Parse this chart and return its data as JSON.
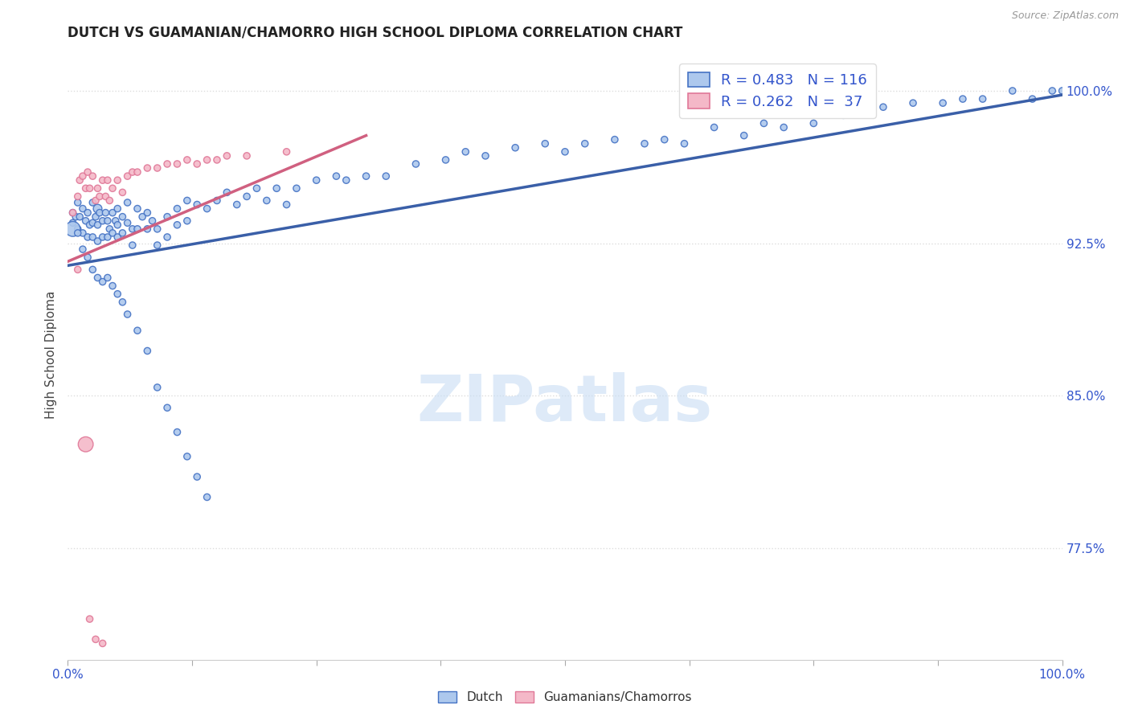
{
  "title": "DUTCH VS GUAMANIAN/CHAMORRO HIGH SCHOOL DIPLOMA CORRELATION CHART",
  "source": "Source: ZipAtlas.com",
  "ylabel": "High School Diploma",
  "watermark": "ZIPatlas",
  "xmin": 0.0,
  "xmax": 1.0,
  "ymin": 0.72,
  "ymax": 1.02,
  "yticks": [
    0.775,
    0.85,
    0.925,
    1.0
  ],
  "ytick_labels": [
    "77.5%",
    "85.0%",
    "92.5%",
    "100.0%"
  ],
  "xticks": [
    0.0,
    0.125,
    0.25,
    0.375,
    0.5,
    0.625,
    0.75,
    0.875,
    1.0
  ],
  "dutch_color": "#adc8ed",
  "dutch_edge_color": "#4472c4",
  "guam_color": "#f4b8c8",
  "guam_edge_color": "#e07898",
  "dutch_line_color": "#3a5fa8",
  "guam_line_color": "#d06080",
  "right_label_color": "#3355cc",
  "title_color": "#222222",
  "ylabel_color": "#444444",
  "background_color": "#ffffff",
  "grid_color": "#dddddd",
  "watermark_color": "#c8ddf4",
  "dutch_scatter_x": [
    0.005,
    0.005,
    0.008,
    0.01,
    0.01,
    0.012,
    0.015,
    0.015,
    0.018,
    0.02,
    0.02,
    0.022,
    0.025,
    0.025,
    0.025,
    0.028,
    0.03,
    0.03,
    0.03,
    0.032,
    0.035,
    0.035,
    0.038,
    0.04,
    0.04,
    0.042,
    0.045,
    0.045,
    0.048,
    0.05,
    0.05,
    0.05,
    0.055,
    0.055,
    0.06,
    0.06,
    0.065,
    0.065,
    0.07,
    0.07,
    0.075,
    0.08,
    0.08,
    0.085,
    0.09,
    0.09,
    0.1,
    0.1,
    0.11,
    0.11,
    0.12,
    0.12,
    0.13,
    0.14,
    0.15,
    0.16,
    0.17,
    0.18,
    0.19,
    0.2,
    0.21,
    0.22,
    0.23,
    0.25,
    0.27,
    0.28,
    0.3,
    0.32,
    0.35,
    0.38,
    0.4,
    0.42,
    0.45,
    0.48,
    0.5,
    0.52,
    0.55,
    0.58,
    0.6,
    0.62,
    0.65,
    0.68,
    0.7,
    0.72,
    0.75,
    0.78,
    0.8,
    0.82,
    0.85,
    0.88,
    0.9,
    0.92,
    0.95,
    0.97,
    0.99,
    1.0,
    0.005,
    0.01,
    0.015,
    0.02,
    0.025,
    0.03,
    0.035,
    0.04,
    0.045,
    0.05,
    0.055,
    0.06,
    0.07,
    0.08,
    0.09,
    0.1,
    0.11,
    0.12,
    0.13,
    0.14
  ],
  "dutch_scatter_y": [
    0.94,
    0.935,
    0.938,
    0.945,
    0.932,
    0.938,
    0.942,
    0.93,
    0.936,
    0.94,
    0.928,
    0.934,
    0.945,
    0.935,
    0.928,
    0.938,
    0.942,
    0.934,
    0.926,
    0.94,
    0.936,
    0.928,
    0.94,
    0.936,
    0.928,
    0.932,
    0.94,
    0.93,
    0.936,
    0.942,
    0.934,
    0.928,
    0.938,
    0.93,
    0.945,
    0.935,
    0.932,
    0.924,
    0.942,
    0.932,
    0.938,
    0.94,
    0.932,
    0.936,
    0.932,
    0.924,
    0.938,
    0.928,
    0.942,
    0.934,
    0.946,
    0.936,
    0.944,
    0.942,
    0.946,
    0.95,
    0.944,
    0.948,
    0.952,
    0.946,
    0.952,
    0.944,
    0.952,
    0.956,
    0.958,
    0.956,
    0.958,
    0.958,
    0.964,
    0.966,
    0.97,
    0.968,
    0.972,
    0.974,
    0.97,
    0.974,
    0.976,
    0.974,
    0.976,
    0.974,
    0.982,
    0.978,
    0.984,
    0.982,
    0.984,
    0.988,
    0.99,
    0.992,
    0.994,
    0.994,
    0.996,
    0.996,
    1.0,
    0.996,
    1.0,
    1.0,
    0.932,
    0.93,
    0.922,
    0.918,
    0.912,
    0.908,
    0.906,
    0.908,
    0.904,
    0.9,
    0.896,
    0.89,
    0.882,
    0.872,
    0.854,
    0.844,
    0.832,
    0.82,
    0.81,
    0.8
  ],
  "dutch_scatter_size": [
    35,
    35,
    35,
    35,
    35,
    35,
    35,
    35,
    35,
    35,
    35,
    35,
    35,
    35,
    35,
    35,
    60,
    35,
    35,
    35,
    35,
    35,
    35,
    35,
    35,
    35,
    35,
    35,
    35,
    35,
    35,
    35,
    35,
    35,
    35,
    35,
    35,
    35,
    35,
    35,
    35,
    35,
    35,
    35,
    35,
    35,
    35,
    35,
    35,
    35,
    35,
    35,
    35,
    35,
    35,
    35,
    35,
    35,
    35,
    35,
    35,
    35,
    35,
    35,
    35,
    35,
    35,
    35,
    35,
    35,
    35,
    35,
    35,
    35,
    35,
    35,
    35,
    35,
    35,
    35,
    35,
    35,
    35,
    35,
    35,
    35,
    35,
    35,
    35,
    35,
    35,
    35,
    35,
    35,
    35,
    35,
    180,
    35,
    35,
    35,
    35,
    35,
    35,
    35,
    35,
    35,
    35,
    35,
    35,
    35,
    35,
    35,
    35,
    35,
    35,
    35
  ],
  "guam_scatter_x": [
    0.005,
    0.01,
    0.012,
    0.015,
    0.018,
    0.02,
    0.022,
    0.025,
    0.028,
    0.03,
    0.032,
    0.035,
    0.038,
    0.04,
    0.042,
    0.045,
    0.05,
    0.055,
    0.06,
    0.065,
    0.07,
    0.08,
    0.09,
    0.1,
    0.11,
    0.12,
    0.13,
    0.14,
    0.15,
    0.16,
    0.18,
    0.22,
    0.01,
    0.018,
    0.022,
    0.028,
    0.035
  ],
  "guam_scatter_y": [
    0.94,
    0.948,
    0.956,
    0.958,
    0.952,
    0.96,
    0.952,
    0.958,
    0.946,
    0.952,
    0.948,
    0.956,
    0.948,
    0.956,
    0.946,
    0.952,
    0.956,
    0.95,
    0.958,
    0.96,
    0.96,
    0.962,
    0.962,
    0.964,
    0.964,
    0.966,
    0.964,
    0.966,
    0.966,
    0.968,
    0.968,
    0.97,
    0.912,
    0.826,
    0.74,
    0.73,
    0.728
  ],
  "guam_scatter_size": [
    35,
    35,
    35,
    35,
    35,
    35,
    35,
    35,
    35,
    35,
    35,
    35,
    35,
    35,
    35,
    35,
    35,
    35,
    35,
    35,
    35,
    35,
    35,
    35,
    35,
    35,
    35,
    35,
    35,
    35,
    35,
    35,
    35,
    180,
    35,
    35,
    35
  ],
  "dutch_trendline_x": [
    0.0,
    1.0
  ],
  "dutch_trendline_y": [
    0.914,
    0.998
  ],
  "guam_trendline_x": [
    0.0,
    0.3
  ],
  "guam_trendline_y": [
    0.916,
    0.978
  ]
}
